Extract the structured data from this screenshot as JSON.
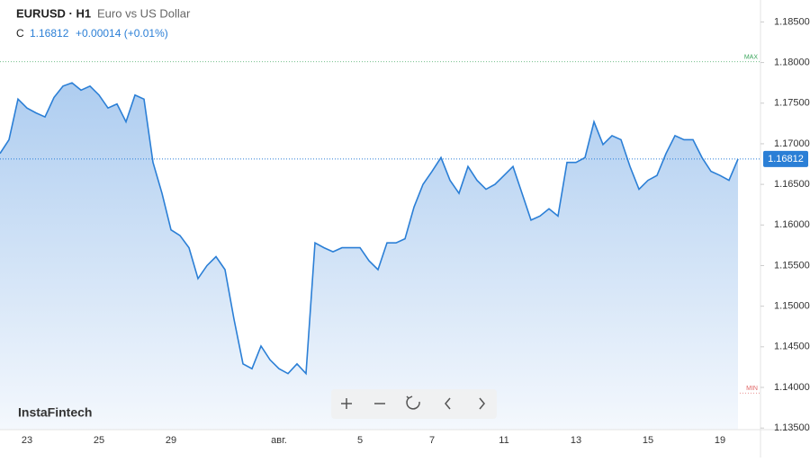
{
  "header": {
    "symbol": "EURUSD · H1",
    "description": "Euro vs US Dollar",
    "close_label": "C",
    "change": "+0.00014 (+0.01%)"
  },
  "watermark": "InstaFintech",
  "chart_data": {
    "type": "area",
    "categories": [
      null,
      null,
      null,
      "23",
      null,
      null,
      null,
      null,
      null,
      null,
      null,
      "25",
      null,
      null,
      null,
      null,
      null,
      null,
      null,
      "29",
      null,
      null,
      null,
      null,
      null,
      null,
      null,
      null,
      null,
      null,
      null,
      "авг.",
      null,
      null,
      null,
      null,
      null,
      null,
      null,
      null,
      "5",
      null,
      null,
      null,
      null,
      null,
      null,
      null,
      "7",
      null,
      null,
      null,
      null,
      null,
      null,
      null,
      "11",
      null,
      null,
      null,
      null,
      null,
      null,
      null,
      "13",
      null,
      null,
      null,
      null,
      null,
      null,
      null,
      "15",
      null,
      null,
      null,
      null,
      null,
      null,
      null,
      "19",
      null,
      null
    ],
    "series": [
      {
        "name": "EURUSD",
        "color": "#2b7fd6",
        "values": [
          1.1688,
          1.1705,
          1.1755,
          1.1744,
          1.1738,
          1.1733,
          1.1757,
          1.1771,
          1.1775,
          1.1766,
          1.1771,
          1.176,
          1.1744,
          1.1749,
          1.1727,
          1.176,
          1.1755,
          1.1677,
          1.1639,
          1.1594,
          1.1587,
          1.1572,
          1.1534,
          1.155,
          1.1561,
          1.1545,
          1.1484,
          1.1429,
          1.1423,
          1.1451,
          1.1434,
          1.1423,
          1.1417,
          1.1429,
          1.1417,
          1.1578,
          1.1572,
          1.1567,
          1.1572,
          1.1572,
          1.1572,
          1.1556,
          1.1545,
          1.1578,
          1.1578,
          1.1583,
          1.1622,
          1.165,
          1.1666,
          1.1683,
          1.1655,
          1.1639,
          1.1672,
          1.1655,
          1.1644,
          1.165,
          1.1661,
          1.1672,
          1.1639,
          1.1606,
          1.1611,
          1.162,
          1.1611,
          1.1677,
          1.1677,
          1.1683,
          1.1727,
          1.1699,
          1.171,
          1.1705,
          1.1672,
          1.1644,
          1.1655,
          1.1661,
          1.1688,
          1.171,
          1.1705,
          1.1705,
          1.1683,
          1.1666,
          1.1661,
          1.1655,
          1.16812
        ]
      }
    ],
    "ylim": [
      1.1348,
      1.1877
    ],
    "yticks": [
      {
        "value": 1.135,
        "label": "1.13500"
      },
      {
        "value": 1.14,
        "label": "1.14000"
      },
      {
        "value": 1.145,
        "label": "1.14500"
      },
      {
        "value": 1.15,
        "label": "1.15000"
      },
      {
        "value": 1.155,
        "label": "1.15500"
      },
      {
        "value": 1.16,
        "label": "1.16000"
      },
      {
        "value": 1.165,
        "label": "1.16500"
      },
      {
        "value": 1.17,
        "label": "1.17000"
      },
      {
        "value": 1.175,
        "label": "1.17500"
      },
      {
        "value": 1.18,
        "label": "1.18000"
      },
      {
        "value": 1.185,
        "label": "1.18500"
      }
    ],
    "max_line": {
      "label": "MAX",
      "value": 1.1801
    },
    "min_line": {
      "label": "MIN",
      "value": 1.1393
    }
  }
}
